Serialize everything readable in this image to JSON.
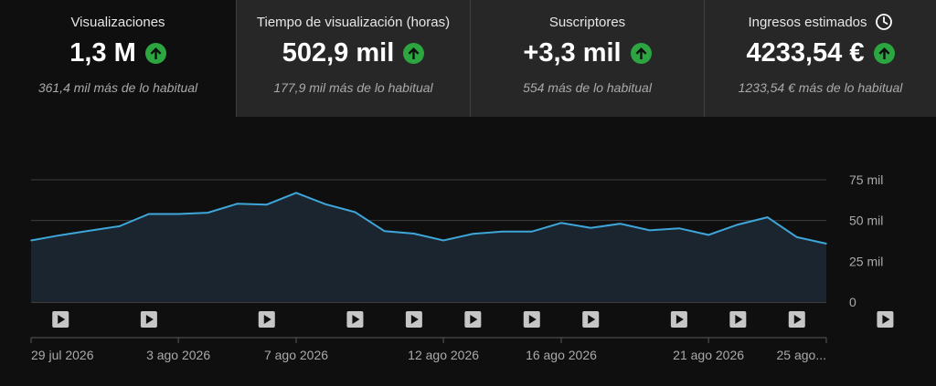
{
  "cards": [
    {
      "title": "Visualizaciones",
      "value": "1,3 M",
      "sub": "361,4 mil más de lo habitual"
    },
    {
      "title": "Tiempo de visualización (horas)",
      "value": "502,9 mil",
      "sub": "177,9 mil más de lo habitual"
    },
    {
      "title": "Suscriptores",
      "value": "+3,3 mil",
      "sub": "554 más de lo habitual"
    },
    {
      "title": "Ingresos estimados",
      "value": "4233,54 €",
      "sub": "1233,54 € más de lo habitual"
    }
  ],
  "colors": {
    "line": "#3ea6d9",
    "trend_up": "#2ba640",
    "grid": "#3f3f3f"
  },
  "chart_data": {
    "type": "area",
    "x": [
      "29 jul",
      "30 jul",
      "31 jul",
      "1 ago",
      "2 ago",
      "3 ago",
      "4 ago",
      "5 ago",
      "6 ago",
      "7 ago",
      "8 ago",
      "9 ago",
      "10 ago",
      "11 ago",
      "12 ago",
      "13 ago",
      "14 ago",
      "15 ago",
      "16 ago",
      "17 ago",
      "18 ago",
      "19 ago",
      "20 ago",
      "21 ago",
      "22 ago",
      "23 ago",
      "24 ago",
      "25 ago"
    ],
    "series": [
      {
        "values": [
          37800,
          41000,
          43800,
          46500,
          54000,
          54000,
          54800,
          60300,
          59800,
          67000,
          60000,
          55200,
          43500,
          42000,
          37800,
          41800,
          43200,
          43200,
          48500,
          45500,
          48000,
          44000,
          45200,
          41200,
          47500,
          52000,
          39800,
          35800
        ]
      }
    ],
    "ylim": [
      0,
      75000
    ],
    "yticks": [
      {
        "value": 0,
        "label": "0"
      },
      {
        "value": 25000,
        "label": "25 mil"
      },
      {
        "value": 50000,
        "label": "50 mil"
      },
      {
        "value": 75000,
        "label": "75 mil"
      }
    ],
    "xticks": [
      {
        "index": 0,
        "label": "29 jul 2026"
      },
      {
        "index": 5,
        "label": "3 ago 2026"
      },
      {
        "index": 9,
        "label": "7 ago 2026"
      },
      {
        "index": 14,
        "label": "12 ago 2026"
      },
      {
        "index": 18,
        "label": "16 ago 2026"
      },
      {
        "index": 23,
        "label": "21 ago 2026"
      },
      {
        "index": 27,
        "label": "25 ago..."
      }
    ],
    "video_markers": [
      1,
      4,
      8,
      11,
      13,
      15,
      17,
      19,
      22,
      24,
      26,
      29
    ]
  }
}
